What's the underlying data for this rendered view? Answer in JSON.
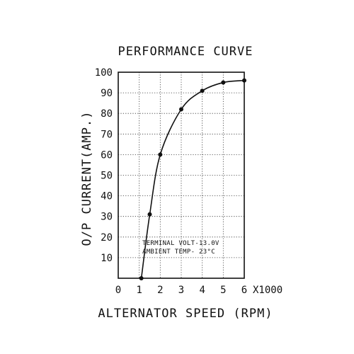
{
  "chart_data": {
    "type": "line",
    "title": "PERFORMANCE CURVE",
    "xlabel": "ALTERNATOR SPEED (RPM)",
    "ylabel": "O/P CURRENT(AMP.)",
    "x_multiplier_label": "X1000",
    "xlim": [
      0,
      6
    ],
    "ylim": [
      0,
      100
    ],
    "x_ticks": [
      "0",
      "1",
      "2",
      "3",
      "4",
      "5",
      "6"
    ],
    "y_ticks": [
      "10",
      "20",
      "30",
      "40",
      "50",
      "60",
      "70",
      "80",
      "90",
      "100"
    ],
    "grid": true,
    "series": [
      {
        "x": [
          1.1,
          1.5,
          2.0,
          3.0,
          4.0,
          5.0,
          6.0
        ],
        "y": [
          0,
          31,
          60,
          82,
          91,
          95,
          96
        ]
      }
    ],
    "annotations": [
      "TERMINAL VOLT-13.0V",
      "AMBIENT TEMP- 23°C"
    ]
  }
}
